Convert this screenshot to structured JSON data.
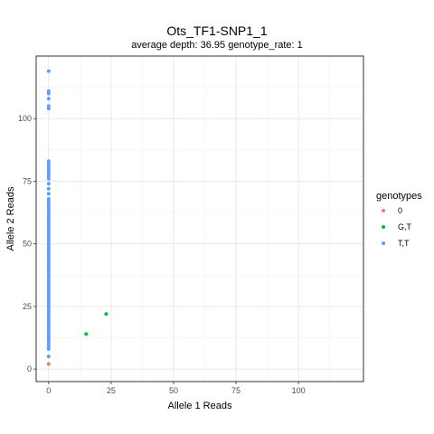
{
  "chart_data": {
    "type": "scatter",
    "title": "Ots_TF1-SNP1_1",
    "subtitle": "average depth:  36.95  genotype_rate:  1",
    "xlabel": "Allele 1 Reads",
    "ylabel": "Allele 2 Reads",
    "xlim": [
      -5,
      126
    ],
    "ylim": [
      -5,
      125
    ],
    "xticks": [
      0,
      25,
      50,
      75,
      100
    ],
    "yticks": [
      0,
      25,
      50,
      75,
      100
    ],
    "grid": true,
    "legend_position": "right",
    "legend_title": "genotypes",
    "series": [
      {
        "name": "0",
        "color": "#F8766D",
        "points": [
          [
            0,
            2
          ]
        ]
      },
      {
        "name": "G,T",
        "color": "#00BA38",
        "points": [
          [
            15,
            14
          ],
          [
            23,
            22
          ]
        ]
      },
      {
        "name": "T,T",
        "color": "#619CFF",
        "points": [
          [
            0,
            5
          ],
          [
            0,
            8
          ],
          [
            0,
            9
          ],
          [
            0,
            10
          ],
          [
            0,
            11
          ],
          [
            0,
            12
          ],
          [
            0,
            13
          ],
          [
            0,
            14
          ],
          [
            0,
            15
          ],
          [
            0,
            16
          ],
          [
            0,
            17
          ],
          [
            0,
            18
          ],
          [
            0,
            19
          ],
          [
            0,
            20
          ],
          [
            0,
            21
          ],
          [
            0,
            22
          ],
          [
            0,
            23
          ],
          [
            0,
            24
          ],
          [
            0,
            25
          ],
          [
            0,
            26
          ],
          [
            0,
            27
          ],
          [
            0,
            28
          ],
          [
            0,
            29
          ],
          [
            0,
            30
          ],
          [
            0,
            31
          ],
          [
            0,
            32
          ],
          [
            0,
            33
          ],
          [
            0,
            34
          ],
          [
            0,
            35
          ],
          [
            0,
            36
          ],
          [
            0,
            37
          ],
          [
            0,
            38
          ],
          [
            0,
            39
          ],
          [
            0,
            40
          ],
          [
            0,
            41
          ],
          [
            0,
            42
          ],
          [
            0,
            43
          ],
          [
            0,
            44
          ],
          [
            0,
            45
          ],
          [
            0,
            46
          ],
          [
            0,
            47
          ],
          [
            0,
            48
          ],
          [
            0,
            49
          ],
          [
            0,
            50
          ],
          [
            0,
            51
          ],
          [
            0,
            52
          ],
          [
            0,
            53
          ],
          [
            0,
            54
          ],
          [
            0,
            55
          ],
          [
            0,
            56
          ],
          [
            0,
            57
          ],
          [
            0,
            58
          ],
          [
            0,
            59
          ],
          [
            0,
            60
          ],
          [
            0,
            61
          ],
          [
            0,
            62
          ],
          [
            0,
            63
          ],
          [
            0,
            64
          ],
          [
            0,
            65
          ],
          [
            0,
            66
          ],
          [
            0,
            67
          ],
          [
            0,
            68
          ],
          [
            0,
            70
          ],
          [
            0,
            72
          ],
          [
            0,
            74
          ],
          [
            0,
            76
          ],
          [
            0,
            77
          ],
          [
            0,
            78
          ],
          [
            0,
            79
          ],
          [
            0,
            80
          ],
          [
            0,
            81
          ],
          [
            0,
            82
          ],
          [
            0,
            83
          ],
          [
            0,
            104
          ],
          [
            0,
            105
          ],
          [
            0,
            108
          ],
          [
            0,
            110
          ],
          [
            0,
            111
          ],
          [
            0,
            119
          ]
        ]
      }
    ]
  }
}
